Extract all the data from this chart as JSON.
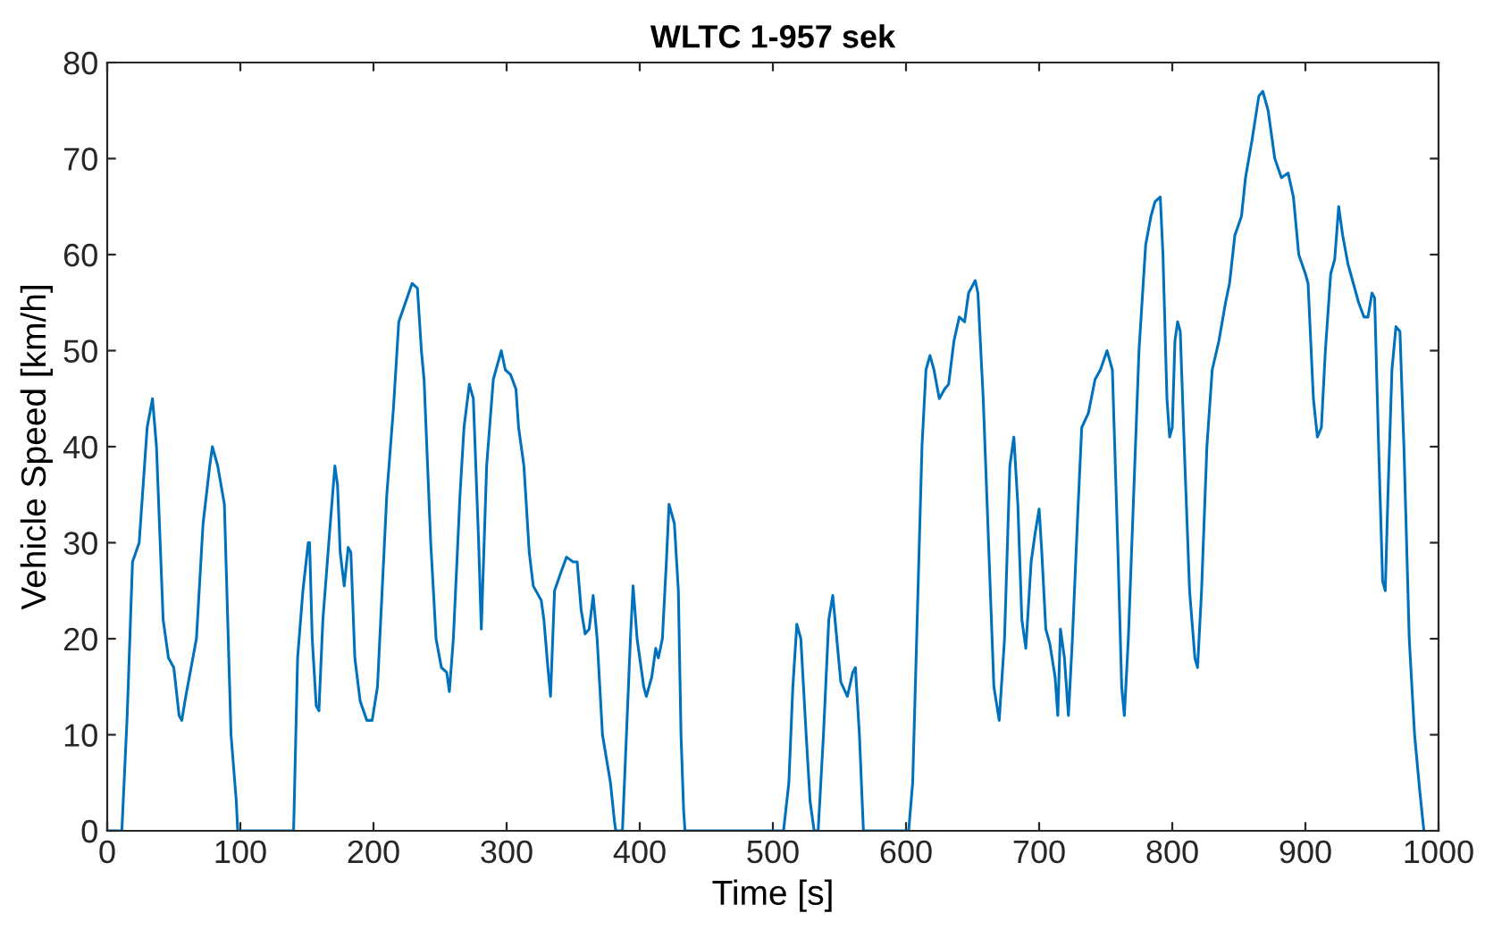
{
  "chart_data": {
    "type": "line",
    "title": "WLTC 1-957 sek",
    "xlabel": "Time [s]",
    "ylabel": "Vehicle Speed [km/h]",
    "xlim": [
      0,
      1000
    ],
    "xticks": [
      0,
      100,
      200,
      300,
      400,
      500,
      600,
      700,
      800,
      900,
      1000
    ],
    "ylim": [
      0,
      80
    ],
    "yticks": [
      0,
      10,
      20,
      30,
      40,
      50,
      60,
      70,
      80
    ],
    "grid": false,
    "legend": false,
    "marker": "none",
    "line_style": "solid",
    "series": [
      {
        "color": "#0072bd",
        "x": [
          0,
          11,
          15,
          19,
          24,
          30,
          34,
          37,
          42,
          46,
          50,
          54,
          56,
          59,
          63,
          67,
          72,
          77,
          79,
          83,
          88,
          93,
          97,
          98,
          140,
          143,
          147,
          151,
          152,
          154,
          157,
          159,
          162,
          167,
          171,
          173,
          175,
          178,
          181,
          183,
          186,
          190,
          195,
          199,
          203,
          210,
          215,
          219,
          224,
          229,
          233,
          236,
          238,
          243,
          247,
          251,
          255,
          257,
          260,
          265,
          268,
          272,
          275,
          279,
          281,
          285,
          290,
          296,
          299,
          303,
          307,
          309,
          313,
          317,
          320,
          326,
          328,
          331,
          333,
          336,
          341,
          345,
          350,
          353,
          356,
          359,
          362,
          365,
          368,
          372,
          378,
          381,
          382,
          387,
          390,
          393,
          395,
          398,
          403,
          405,
          409,
          412,
          414,
          417,
          420,
          422,
          426,
          429,
          431,
          433,
          434,
          508,
          512,
          515,
          518,
          521,
          525,
          528,
          531,
          534,
          538,
          542,
          545,
          548,
          551,
          556,
          560,
          562,
          565,
          568,
          602,
          605,
          609,
          612,
          615,
          618,
          621,
          625,
          629,
          632,
          636,
          640,
          644,
          647,
          652,
          654,
          658,
          662,
          666,
          670,
          674,
          678,
          681,
          684,
          687,
          690,
          694,
          697,
          700,
          702,
          705,
          708,
          712,
          714,
          716,
          719,
          722,
          725,
          729,
          732,
          737,
          742,
          746,
          751,
          755,
          759,
          762,
          764,
          767,
          771,
          775,
          780,
          784,
          787,
          791,
          793,
          796,
          798,
          800,
          802,
          804,
          806,
          809,
          813,
          817,
          819,
          822,
          826,
          830,
          835,
          840,
          843,
          847,
          852,
          855,
          860,
          865,
          868,
          872,
          877,
          882,
          887,
          891,
          895,
          900,
          902,
          906,
          909,
          912,
          915,
          919,
          922,
          925,
          928,
          932,
          936,
          940,
          944,
          947,
          950,
          952,
          955,
          958,
          960,
          962,
          965,
          968,
          971,
          974,
          978,
          982,
          986,
          989
        ],
        "values": [
          0,
          0,
          12,
          28,
          30,
          42,
          45,
          40,
          22,
          18,
          17,
          12,
          11.5,
          14,
          17,
          20,
          32,
          38,
          40,
          38,
          34,
          10,
          3,
          0,
          0,
          18,
          25,
          30,
          30,
          20,
          13,
          12.5,
          22,
          31,
          38,
          36,
          29,
          25.5,
          29.5,
          29,
          18,
          13.5,
          11.5,
          11.5,
          15,
          35,
          44,
          53,
          55,
          57,
          56.5,
          50,
          47,
          30,
          20,
          17,
          16.5,
          14.5,
          20,
          35,
          42,
          46.5,
          45,
          30,
          21,
          38,
          47,
          50,
          48,
          47.5,
          46,
          42,
          38,
          29,
          25.5,
          24,
          22,
          17,
          14,
          25,
          27,
          28.5,
          28,
          28,
          23,
          20.5,
          21,
          24.5,
          20,
          10,
          5,
          1,
          0,
          0,
          10,
          20,
          25.5,
          20,
          15,
          14,
          16,
          19,
          18,
          20,
          28,
          34,
          32,
          25,
          10,
          2,
          0,
          0,
          5,
          15,
          21.5,
          20,
          10,
          3,
          0,
          0,
          10,
          22,
          24.5,
          20,
          15.5,
          14,
          16.5,
          17,
          10,
          0,
          0,
          5,
          25,
          40,
          48,
          49.5,
          48,
          45,
          46,
          46.5,
          51,
          53.5,
          53,
          56,
          57.3,
          56,
          45,
          30,
          15,
          11.5,
          20,
          38,
          41,
          34,
          22,
          19,
          28,
          31,
          33.5,
          29,
          21,
          19.5,
          16,
          12,
          21,
          18,
          12,
          20,
          33,
          42,
          43.5,
          47,
          48,
          50,
          48,
          30,
          15,
          12,
          20,
          35,
          50,
          61,
          64,
          65.5,
          66,
          60,
          45,
          41,
          42,
          51,
          53,
          52,
          40,
          25,
          18,
          17,
          25,
          40,
          48,
          51,
          55,
          57,
          62,
          64,
          68,
          72,
          76.5,
          77,
          75,
          70,
          68,
          68.5,
          66,
          60,
          58,
          57,
          45,
          41,
          42,
          50,
          58,
          59.5,
          65,
          62,
          59,
          57,
          55,
          53.5,
          53.5,
          56,
          55.5,
          40,
          26,
          25,
          35,
          48,
          52.5,
          52,
          40,
          20,
          10,
          4,
          0
        ]
      }
    ]
  }
}
